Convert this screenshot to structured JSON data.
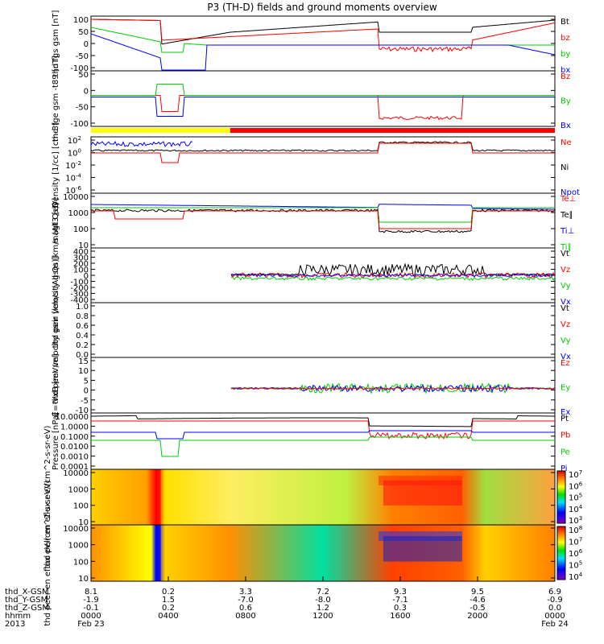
{
  "title": "P3 (TH-D) fields and ground moments overview",
  "date_left": "Feb 23",
  "date_right": "Feb 24",
  "colorbar_ticks": {
    "eflux_ions": [
      "10^7",
      "10^6",
      "10^5",
      "10^4",
      "10^3"
    ],
    "eflux_electrons": [
      "10^8",
      "10^7",
      "10^6",
      "10^5",
      "10^4"
    ]
  },
  "eph_rows": [
    {
      "label": "thd_X-GSM",
      "values": [
        "8.1",
        "0.2",
        "3.3",
        "7.2",
        "9.3",
        "9.5",
        "6.9"
      ]
    },
    {
      "label": "thd_Y-GSM",
      "values": [
        "-1.9",
        "1.5",
        "-7.0",
        "-8.0",
        "-7.1",
        "-4.6",
        "-0.9"
      ]
    },
    {
      "label": "thd_Z-GSM",
      "values": [
        "-0.1",
        "0.2",
        "0.6",
        "1.2",
        "0.3",
        "-0.5",
        "0.0"
      ]
    },
    {
      "label": "hhmm",
      "values": [
        "0000",
        "0400",
        "0800",
        "1200",
        "1600",
        "2000",
        "0000"
      ]
    },
    {
      "label": "2013",
      "values": []
    }
  ],
  "chart_data": [
    {
      "type": "line",
      "ylabel": "thd fgs gsm [nT]",
      "yticks": [
        "100",
        "50",
        "0",
        "-50",
        "-100"
      ],
      "ylim": [
        -100,
        100
      ],
      "series": [
        {
          "name": "Bt",
          "color": "#000000"
        },
        {
          "name": "bz",
          "color": "#ff0000"
        },
        {
          "name": "by",
          "color": "#00cc00"
        },
        {
          "name": "bx",
          "color": "#0000ff"
        }
      ]
    },
    {
      "type": "line",
      "ylabel": "thd fge gsm -t89 [nT]",
      "yticks": [
        "50",
        "0",
        "-50",
        "-100"
      ],
      "ylim": [
        -120,
        60
      ],
      "series": [
        {
          "name": "Bz",
          "color": "#ff0000"
        },
        {
          "name": "By",
          "color": "#00cc00"
        },
        {
          "name": "Bx",
          "color": "#0000ff"
        }
      ]
    },
    {
      "type": "line",
      "ylabel": "Density [1/cc] [cm-3]",
      "yticks": [
        "10^2",
        "10^0",
        "10^-2",
        "10^-4",
        "10^-6"
      ],
      "log": true,
      "series": [
        {
          "name": "Ne",
          "color": "#ff0000"
        },
        {
          "name": "Ni",
          "color": "#000000"
        },
        {
          "name": "Npot",
          "color": "#0000ff"
        }
      ]
    },
    {
      "type": "line",
      "ylabel": "magt3 [eV]",
      "yticks": [
        "10000",
        "1000",
        "100",
        "10"
      ],
      "log": true,
      "series": [
        {
          "name": "Te⊥",
          "color": "#ff0000"
        },
        {
          "name": "Te∥",
          "color": "#000000"
        },
        {
          "name": "Ti⊥",
          "color": "#0000ff"
        },
        {
          "name": "Ti∥",
          "color": "#00cc00"
        }
      ]
    },
    {
      "type": "line",
      "ylabel": "thd peir velocity gsm [km/s (All Qs)]",
      "yticks": [
        "400",
        "300",
        "200",
        "100",
        "0",
        "-100",
        "-200",
        "-300",
        "-400"
      ],
      "ylim": [
        -400,
        400
      ],
      "series": [
        {
          "name": "Vt",
          "color": "#000000"
        },
        {
          "name": "Vz",
          "color": "#ff0000"
        },
        {
          "name": "Vy",
          "color": "#00cc00"
        },
        {
          "name": "Vx",
          "color": "#0000ff"
        }
      ]
    },
    {
      "type": "line",
      "ylabel": "thd peer velocity gsm [km/s (All Qs)]",
      "yticks": [
        "1.0",
        "0.8",
        "0.6",
        "0.4",
        "0.2",
        "0.0"
      ],
      "ylim": [
        0,
        1
      ],
      "series": [
        {
          "name": "Vt",
          "color": "#000000"
        },
        {
          "name": "Vz",
          "color": "#ff0000"
        },
        {
          "name": "Vy",
          "color": "#00cc00"
        },
        {
          "name": "Vx",
          "color": "#0000ff"
        }
      ]
    },
    {
      "type": "line",
      "ylabel": "E=-VxB [mV/m]",
      "yticks": [
        "15",
        "10",
        "5",
        "0",
        "-5",
        "-10"
      ],
      "ylim": [
        -12,
        15
      ],
      "series": [
        {
          "name": "Ez",
          "color": "#ff0000"
        },
        {
          "name": "Ey",
          "color": "#00cc00"
        },
        {
          "name": "Ex",
          "color": "#0000ff"
        }
      ]
    },
    {
      "type": "line",
      "ylabel": "Pressure [nPa]",
      "yticks": [
        "10.0000",
        "1.0000",
        "0.1000",
        "0.0100",
        "0.0010",
        "0.0001"
      ],
      "log": true,
      "series": [
        {
          "name": "Pt",
          "color": "#000000"
        },
        {
          "name": "Pb",
          "color": "#ff0000"
        },
        {
          "name": "Pe",
          "color": "#00cc00"
        },
        {
          "name": "Pi",
          "color": "#0000ff"
        }
      ]
    },
    {
      "type": "heatmap",
      "ylabel": "thd peir en eflux eV/(cm^2-s-sr-eV)",
      "yticks": [
        "10000",
        "1000",
        "100",
        "10"
      ]
    },
    {
      "type": "heatmap",
      "ylabel": "thd peer en eflux eV/(cm^2-s-sr-eV)",
      "yticks": [
        "10000",
        "1000",
        "100",
        "10"
      ]
    }
  ],
  "colors": {
    "bt": "#000000",
    "bz": "#ff0000",
    "by": "#00cc00",
    "bx": "#0000ff",
    "flag_yellow": "#ffff00",
    "flag_red": "#ff0000"
  }
}
